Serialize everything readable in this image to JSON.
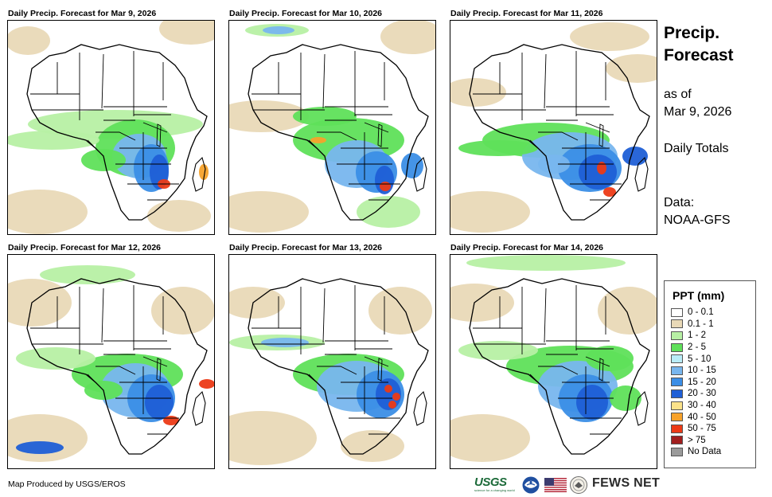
{
  "header": {
    "title_line1": "Precip.",
    "title_line2": "Forecast",
    "as_of_label": "as of",
    "as_of_date": "Mar 9, 2026",
    "totals_label": "Daily Totals",
    "data_label": "Data:",
    "data_source": "NOAA-GFS"
  },
  "panels": [
    {
      "title": "Daily Precip. Forecast for Mar 9, 2026"
    },
    {
      "title": "Daily Precip. Forecast for Mar 10, 2026"
    },
    {
      "title": "Daily Precip. Forecast for Mar 11, 2026"
    },
    {
      "title": "Daily Precip. Forecast for Mar 12, 2026"
    },
    {
      "title": "Daily Precip. Forecast for Mar 13, 2026"
    },
    {
      "title": "Daily Precip. Forecast for Mar 14, 2026"
    }
  ],
  "legend": {
    "title": "PPT (mm)",
    "items": [
      {
        "label": "0 - 0.1",
        "color": "#ffffff"
      },
      {
        "label": "0.1 - 1",
        "color": "#e9d9b7"
      },
      {
        "label": "1 - 2",
        "color": "#b7f0a4"
      },
      {
        "label": "2 - 5",
        "color": "#5fe05a"
      },
      {
        "label": "5 - 10",
        "color": "#b9ecf6"
      },
      {
        "label": "10 - 15",
        "color": "#78b6ee"
      },
      {
        "label": "15 - 20",
        "color": "#3b8ee6"
      },
      {
        "label": "20 - 30",
        "color": "#1f5fd6"
      },
      {
        "label": "30 - 40",
        "color": "#fbe28a"
      },
      {
        "label": "40 - 50",
        "color": "#f7a22b"
      },
      {
        "label": "50 - 75",
        "color": "#ec3a16"
      },
      {
        "label": "> 75",
        "color": "#a11e1e"
      },
      {
        "label": "No Data",
        "color": "#9a9a9a"
      }
    ]
  },
  "footer": {
    "credit": "Map Produced by USGS/EROS",
    "usgs_logo_text": "USGS",
    "usgs_tagline": "science for a changing world",
    "fews_label": "FEWS NET"
  }
}
